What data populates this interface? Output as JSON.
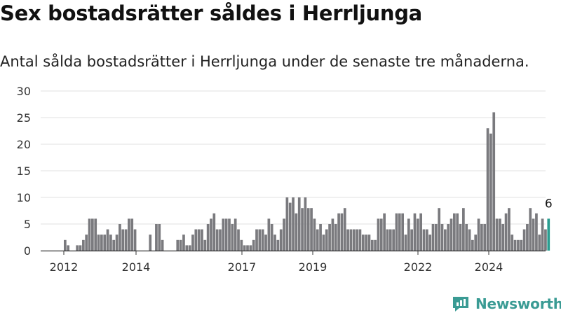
{
  "header": {
    "title": "Sex bostadsrätter såldes i Herrljunga",
    "subtitle": "Antal sålda bostadsrätter i Herrljunga under de senaste tre månaderna."
  },
  "brand": {
    "name": "Newsworthy",
    "color": "#3a9b94"
  },
  "chart_data": {
    "type": "bar",
    "y_ticks": [
      0,
      5,
      10,
      15,
      20,
      25,
      30
    ],
    "ylim": [
      0,
      30
    ],
    "x_ticks": [
      "2012",
      "2014",
      "2017",
      "2019",
      "2022",
      "2024"
    ],
    "grid": true,
    "bar_color": "#7a7a7e",
    "highlight_color": "#2a9d90",
    "highlight_label": "6",
    "series": [
      {
        "values": [
          2,
          1,
          0,
          0,
          1,
          1,
          2,
          3,
          6,
          6,
          6,
          3,
          3,
          3,
          4,
          3,
          2,
          3,
          5,
          4,
          4,
          6,
          6,
          4,
          0,
          0,
          0,
          0,
          3,
          0,
          5,
          5,
          2,
          0,
          0,
          0,
          0,
          2,
          2,
          3,
          1,
          1,
          3,
          4,
          4,
          4,
          2,
          5,
          6,
          7,
          4,
          4,
          6,
          6,
          6,
          5,
          6,
          4,
          2,
          1,
          1,
          1,
          2,
          4,
          4,
          4,
          3,
          6,
          5,
          3,
          2,
          4,
          6,
          10,
          9,
          10,
          7,
          10,
          8,
          10,
          8,
          8,
          6,
          4,
          5,
          3,
          4,
          5,
          6,
          5,
          7,
          7,
          8,
          4,
          4,
          4,
          4,
          4,
          3,
          3,
          3,
          2,
          2,
          6,
          6,
          7,
          4,
          4,
          4,
          7,
          7,
          7,
          3,
          6,
          4,
          7,
          6,
          7,
          4,
          4,
          3,
          5,
          5,
          8,
          5,
          4,
          5,
          6,
          7,
          7,
          5,
          8,
          5,
          4,
          2,
          3,
          6,
          5,
          5,
          23,
          22,
          26,
          6,
          6,
          5,
          7,
          8,
          3,
          2,
          2,
          2,
          4,
          5,
          8,
          6,
          7,
          3,
          6,
          4,
          6
        ]
      }
    ]
  }
}
